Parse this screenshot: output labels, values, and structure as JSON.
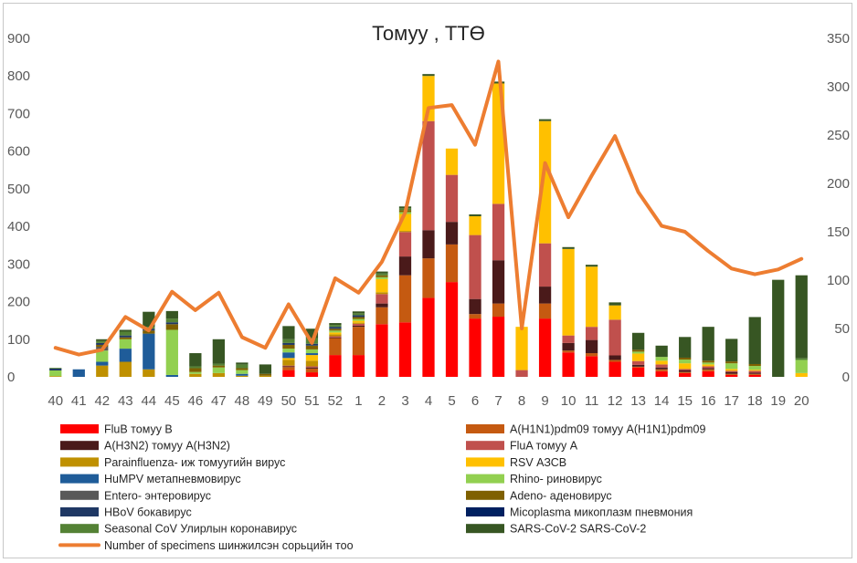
{
  "chart_data": {
    "type": "bar",
    "stacked": true,
    "title": "Томуу , ТТӨ",
    "categories": [
      "40",
      "41",
      "42",
      "43",
      "44",
      "45",
      "46",
      "47",
      "48",
      "49",
      "50",
      "51",
      "52",
      "1",
      "2",
      "3",
      "4",
      "5",
      "6",
      "7",
      "8",
      "9",
      "10",
      "11",
      "12",
      "13",
      "14",
      "15",
      "16",
      "17",
      "18",
      "19",
      "20"
    ],
    "y_left": {
      "min": 0,
      "max": 900,
      "ticks": [
        "0",
        "100",
        "200",
        "300",
        "400",
        "500",
        "600",
        "700",
        "800",
        "900"
      ]
    },
    "y_right": {
      "min": 0,
      "max": 350,
      "ticks": [
        "0",
        "50",
        "100",
        "150",
        "200",
        "250",
        "300",
        "350"
      ]
    },
    "grid": false,
    "legend_position": "bottom",
    "series": [
      {
        "name": "FluB томуу B",
        "color": "#ff0000",
        "values": [
          0,
          0,
          0,
          0,
          0,
          0,
          0,
          0,
          0,
          0,
          18,
          12,
          58,
          58,
          140,
          145,
          210,
          252,
          155,
          160,
          0,
          155,
          65,
          55,
          40,
          25,
          15,
          10,
          15,
          5,
          5,
          0,
          0
        ]
      },
      {
        "name": "A(H1N1)pdm09 томуу A(H1N1)pdm09",
        "color": "#c55a11",
        "values": [
          0,
          0,
          0,
          0,
          0,
          0,
          0,
          0,
          0,
          0,
          8,
          10,
          45,
          75,
          45,
          125,
          105,
          100,
          12,
          35,
          0,
          40,
          5,
          8,
          5,
          2,
          5,
          3,
          5,
          3,
          3,
          0,
          0
        ]
      },
      {
        "name": "A(H3N2) томуу A(H3N2)",
        "color": "#4a1a1a",
        "values": [
          0,
          0,
          0,
          0,
          0,
          0,
          0,
          0,
          0,
          0,
          2,
          3,
          2,
          3,
          10,
          50,
          75,
          60,
          40,
          115,
          0,
          45,
          20,
          35,
          12,
          5,
          5,
          5,
          3,
          5,
          3,
          0,
          0
        ]
      },
      {
        "name": "FluA томуу A",
        "color": "#c0504d",
        "values": [
          0,
          0,
          0,
          0,
          0,
          0,
          0,
          0,
          0,
          0,
          2,
          3,
          3,
          5,
          25,
          65,
          290,
          125,
          170,
          150,
          18,
          115,
          20,
          35,
          95,
          10,
          8,
          3,
          5,
          3,
          5,
          0,
          0
        ]
      },
      {
        "name": "Parainfluenza- иж томуугийн вирус",
        "color": "#bf9000",
        "values": [
          2,
          0,
          30,
          40,
          20,
          0,
          8,
          10,
          3,
          3,
          15,
          15,
          5,
          3,
          5,
          3,
          0,
          0,
          0,
          0,
          0,
          0,
          0,
          0,
          0,
          0,
          0,
          0,
          0,
          0,
          0,
          0,
          0
        ]
      },
      {
        "name": "RSV АЗСВ",
        "color": "#ffc000",
        "values": [
          0,
          0,
          0,
          0,
          0,
          0,
          0,
          0,
          0,
          0,
          5,
          15,
          5,
          5,
          35,
          45,
          120,
          70,
          50,
          320,
          115,
          325,
          230,
          160,
          38,
          20,
          10,
          15,
          5,
          5,
          3,
          0,
          10
        ]
      },
      {
        "name": "HuMPV метапневмовирус",
        "color": "#1f5c99",
        "values": [
          0,
          20,
          10,
          35,
          95,
          5,
          0,
          0,
          5,
          0,
          15,
          5,
          0,
          0,
          0,
          0,
          0,
          0,
          0,
          0,
          0,
          0,
          0,
          0,
          0,
          0,
          0,
          0,
          0,
          0,
          0,
          0,
          0
        ]
      },
      {
        "name": "Rhino- риновирус",
        "color": "#92d050",
        "values": [
          15,
          0,
          30,
          25,
          0,
          120,
          5,
          15,
          10,
          0,
          10,
          10,
          5,
          5,
          5,
          5,
          0,
          0,
          0,
          0,
          0,
          0,
          0,
          0,
          0,
          5,
          10,
          10,
          5,
          15,
          10,
          0,
          35
        ]
      },
      {
        "name": "Entero- энтеровирус",
        "color": "#595959",
        "values": [
          0,
          0,
          10,
          0,
          0,
          0,
          0,
          0,
          0,
          0,
          0,
          0,
          0,
          0,
          0,
          0,
          0,
          0,
          0,
          0,
          0,
          0,
          0,
          0,
          0,
          0,
          0,
          0,
          0,
          0,
          0,
          0,
          0
        ]
      },
      {
        "name": "Adeno- аденовирус",
        "color": "#7f6000",
        "values": [
          0,
          0,
          5,
          5,
          8,
          15,
          10,
          5,
          5,
          5,
          10,
          10,
          5,
          5,
          5,
          5,
          0,
          0,
          0,
          0,
          0,
          0,
          0,
          0,
          0,
          5,
          0,
          5,
          5,
          5,
          5,
          0,
          0
        ]
      },
      {
        "name": "HBoV бокавирус",
        "color": "#1f3864",
        "values": [
          5,
          0,
          5,
          5,
          5,
          5,
          0,
          0,
          0,
          0,
          5,
          5,
          5,
          5,
          0,
          0,
          0,
          0,
          0,
          0,
          0,
          0,
          0,
          0,
          0,
          0,
          0,
          0,
          0,
          0,
          0,
          0,
          0
        ]
      },
      {
        "name": "Micoplasma микоплазм пневмония",
        "color": "#002060",
        "values": [
          0,
          0,
          0,
          0,
          0,
          0,
          0,
          0,
          0,
          0,
          0,
          0,
          0,
          0,
          0,
          0,
          0,
          0,
          0,
          0,
          0,
          0,
          0,
          0,
          0,
          0,
          0,
          0,
          0,
          0,
          0,
          0,
          0
        ]
      },
      {
        "name": "Seasonal CoV Улирлын коронавирус",
        "color": "#548235",
        "values": [
          2,
          0,
          5,
          10,
          5,
          10,
          5,
          5,
          10,
          0,
          10,
          15,
          5,
          5,
          5,
          5,
          0,
          0,
          0,
          0,
          0,
          0,
          0,
          0,
          0,
          0,
          0,
          0,
          0,
          0,
          0,
          0,
          5
        ]
      },
      {
        "name": "SARS-CoV-2 SARS-CoV-2",
        "color": "#375623",
        "values": [
          0,
          0,
          5,
          5,
          40,
          20,
          35,
          65,
          5,
          25,
          35,
          25,
          5,
          5,
          5,
          5,
          5,
          0,
          5,
          5,
          0,
          5,
          5,
          5,
          8,
          45,
          30,
          55,
          90,
          60,
          125,
          258,
          220
        ]
      }
    ],
    "line_series": {
      "name": "Number of specimens шинжилсэн сорьцийн тоо",
      "color": "#ed7d31",
      "axis": "right",
      "values": [
        30,
        23,
        28,
        62,
        48,
        88,
        69,
        87,
        41,
        30,
        75,
        35,
        102,
        87,
        119,
        170,
        278,
        281,
        240,
        326,
        50,
        221,
        165,
        208,
        249,
        191,
        156,
        150,
        130,
        112,
        106,
        111,
        122
      ]
    },
    "legend": [
      {
        "name": "FluB томуу B",
        "color": "#ff0000",
        "kind": "bar"
      },
      {
        "name": "A(H1N1)pdm09 томуу A(H1N1)pdm09",
        "color": "#c55a11",
        "kind": "bar"
      },
      {
        "name": "A(H3N2) томуу A(H3N2)",
        "color": "#4a1a1a",
        "kind": "bar"
      },
      {
        "name": "FluA томуу A",
        "color": "#c0504d",
        "kind": "bar"
      },
      {
        "name": "Parainfluenza- иж томуугийн вирус",
        "color": "#bf9000",
        "kind": "bar"
      },
      {
        "name": "RSV АЗСВ",
        "color": "#ffc000",
        "kind": "bar"
      },
      {
        "name": "HuMPV метапневмовирус",
        "color": "#1f5c99",
        "kind": "bar"
      },
      {
        "name": "Rhino- риновирус",
        "color": "#92d050",
        "kind": "bar"
      },
      {
        "name": "Entero- энтеровирус",
        "color": "#595959",
        "kind": "bar"
      },
      {
        "name": "Adeno- аденовирус",
        "color": "#7f6000",
        "kind": "bar"
      },
      {
        "name": "HBoV бокавирус",
        "color": "#1f3864",
        "kind": "bar"
      },
      {
        "name": "Micoplasma микоплазм пневмония",
        "color": "#002060",
        "kind": "bar"
      },
      {
        "name": "Seasonal CoV Улирлын коронавирус",
        "color": "#548235",
        "kind": "bar"
      },
      {
        "name": "SARS-CoV-2 SARS-CoV-2",
        "color": "#375623",
        "kind": "bar"
      },
      {
        "name": "Number of specimens шинжилсэн сорьцийн тоо",
        "color": "#ed7d31",
        "kind": "line"
      }
    ]
  }
}
